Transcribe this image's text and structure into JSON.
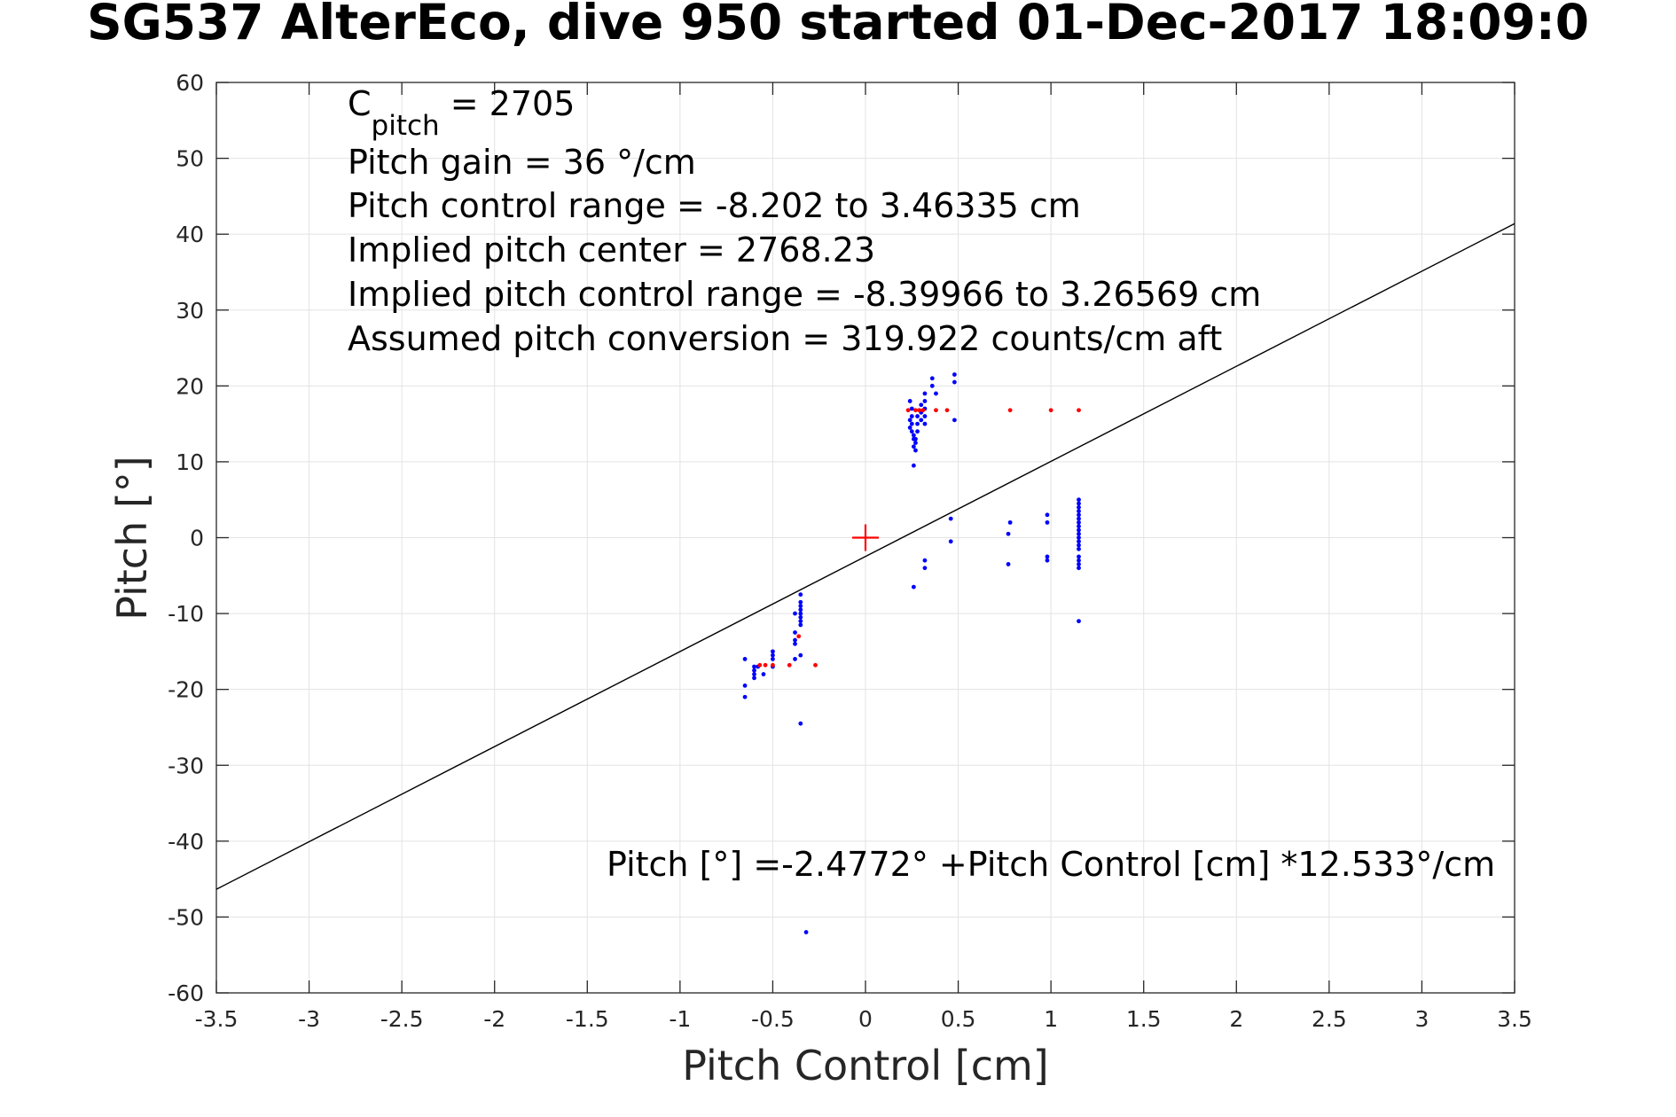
{
  "chart_data": {
    "type": "scatter",
    "title": "SG537 AlterEco, dive 950 started 01-Dec-2017 18:09:0",
    "xlabel": "Pitch Control [cm]",
    "ylabel": "Pitch [°]",
    "xlim": [
      -3.5,
      3.5
    ],
    "ylim": [
      -60,
      60
    ],
    "x_ticks": [
      -3.5,
      -3,
      -2.5,
      -2,
      -1.5,
      -1,
      -0.5,
      0,
      0.5,
      1,
      1.5,
      2,
      2.5,
      3,
      3.5
    ],
    "x_tick_labels": [
      "-3.5",
      "-3",
      "-2.5",
      "-2",
      "-1.5",
      "-1",
      "-0.5",
      "0",
      "0.5",
      "1",
      "1.5",
      "2",
      "2.5",
      "3",
      "3.5"
    ],
    "y_ticks": [
      -60,
      -50,
      -40,
      -30,
      -20,
      -10,
      0,
      10,
      20,
      30,
      40,
      50,
      60
    ],
    "y_tick_labels": [
      "-60",
      "-50",
      "-40",
      "-30",
      "-20",
      "-10",
      "0",
      "10",
      "20",
      "30",
      "40",
      "50",
      "60"
    ],
    "grid": true,
    "annotations": {
      "cpitch_symbol": "C",
      "cpitch_subscript": "pitch",
      "cpitch_value": " = 2705",
      "lines": [
        "Pitch gain = 36 °/cm",
        "Pitch control range = -8.202 to 3.46335 cm",
        "Implied pitch center = 2768.23",
        "Implied pitch control range = -8.39966 to 3.26569 cm",
        "Assumed pitch conversion = 319.922 counts/cm aft"
      ],
      "fit_equation": "Pitch [°] =-2.4772° +Pitch Control [cm] *12.533°/cm"
    },
    "fit_line": {
      "intercept": -2.4772,
      "slope": 12.533,
      "color": "#000000"
    },
    "center_marker": {
      "x": 0,
      "y": 0,
      "color": "#ff0000"
    },
    "series": [
      {
        "color": "#0000ff",
        "points": [
          [
            -0.65,
            -16
          ],
          [
            -0.65,
            -19.5
          ],
          [
            -0.65,
            -21
          ],
          [
            -0.6,
            -17
          ],
          [
            -0.6,
            -17.5
          ],
          [
            -0.6,
            -18
          ],
          [
            -0.6,
            -18.5
          ],
          [
            -0.58,
            -17
          ],
          [
            -0.55,
            -18
          ],
          [
            -0.5,
            -15
          ],
          [
            -0.5,
            -15.5
          ],
          [
            -0.5,
            -16
          ],
          [
            -0.5,
            -17
          ],
          [
            -0.38,
            -12.5
          ],
          [
            -0.38,
            -13.5
          ],
          [
            -0.38,
            -14
          ],
          [
            -0.38,
            -16
          ],
          [
            -0.38,
            -10
          ],
          [
            -0.35,
            -7.5
          ],
          [
            -0.35,
            -8.5
          ],
          [
            -0.35,
            -9
          ],
          [
            -0.35,
            -9.5
          ],
          [
            -0.35,
            -10
          ],
          [
            -0.35,
            -10.5
          ],
          [
            -0.35,
            -11
          ],
          [
            -0.35,
            -11.5
          ],
          [
            -0.35,
            -15.5
          ],
          [
            -0.35,
            -24.5
          ],
          [
            -0.32,
            -52
          ],
          [
            0.24,
            18
          ],
          [
            0.24,
            15.5
          ],
          [
            0.24,
            14.5
          ],
          [
            0.25,
            17
          ],
          [
            0.25,
            16
          ],
          [
            0.25,
            15
          ],
          [
            0.25,
            14
          ],
          [
            0.26,
            13.5
          ],
          [
            0.26,
            13
          ],
          [
            0.26,
            12
          ],
          [
            0.26,
            9.5
          ],
          [
            0.27,
            11.5
          ],
          [
            0.27,
            12.5
          ],
          [
            0.27,
            13
          ],
          [
            0.28,
            14
          ],
          [
            0.28,
            15
          ],
          [
            0.28,
            16
          ],
          [
            0.3,
            15.5
          ],
          [
            0.3,
            17.5
          ],
          [
            0.3,
            16.5
          ],
          [
            0.32,
            18
          ],
          [
            0.32,
            19
          ],
          [
            0.32,
            15
          ],
          [
            0.32,
            16
          ],
          [
            0.32,
            17
          ],
          [
            0.36,
            20
          ],
          [
            0.36,
            21
          ],
          [
            0.38,
            19
          ],
          [
            0.48,
            20.5
          ],
          [
            0.48,
            21.5
          ],
          [
            0.48,
            15.5
          ],
          [
            0.26,
            -6.5
          ],
          [
            0.32,
            -3
          ],
          [
            0.32,
            -4
          ],
          [
            0.46,
            2.5
          ],
          [
            0.46,
            -0.5
          ],
          [
            0.77,
            -3.5
          ],
          [
            0.77,
            0.5
          ],
          [
            0.78,
            2
          ],
          [
            0.98,
            2
          ],
          [
            0.98,
            3
          ],
          [
            0.98,
            -2.5
          ],
          [
            0.98,
            -3
          ],
          [
            1.15,
            5
          ],
          [
            1.15,
            4.5
          ],
          [
            1.15,
            4
          ],
          [
            1.15,
            3.5
          ],
          [
            1.15,
            3
          ],
          [
            1.15,
            2.5
          ],
          [
            1.15,
            2
          ],
          [
            1.15,
            1.5
          ],
          [
            1.15,
            1
          ],
          [
            1.15,
            0.5
          ],
          [
            1.15,
            0
          ],
          [
            1.15,
            -0.5
          ],
          [
            1.15,
            -1
          ],
          [
            1.15,
            -1.5
          ],
          [
            1.15,
            -2.5
          ],
          [
            1.15,
            -3
          ],
          [
            1.15,
            -3.5
          ],
          [
            1.15,
            -4
          ],
          [
            1.15,
            -11
          ]
        ]
      },
      {
        "color": "#ff0000",
        "points": [
          [
            -0.57,
            -16.8
          ],
          [
            -0.54,
            -16.8
          ],
          [
            -0.5,
            -16.8
          ],
          [
            -0.41,
            -16.8
          ],
          [
            -0.27,
            -16.8
          ],
          [
            -0.36,
            -13
          ],
          [
            0.23,
            16.8
          ],
          [
            0.27,
            16.8
          ],
          [
            0.29,
            16.8
          ],
          [
            0.31,
            16.8
          ],
          [
            0.38,
            16.8
          ],
          [
            0.44,
            16.8
          ],
          [
            0.78,
            16.8
          ],
          [
            1.0,
            16.8
          ],
          [
            1.15,
            16.8
          ]
        ]
      }
    ]
  }
}
